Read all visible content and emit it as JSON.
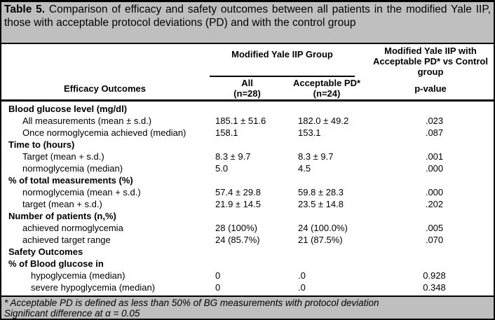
{
  "caption": {
    "label": "Table 5.",
    "text": "Comparison of efficacy and safety outcomes between all patients in the modified Yale IIP, those with acceptable protocol deviations (PD) and with the control group"
  },
  "header": {
    "group": "Modified Yale IIP Group",
    "comparison": "Modified Yale IIP with Acceptable PD* vs Control group",
    "row_label": "Efficacy Outcomes",
    "col_all": "All\n(n=28)",
    "col_pd": "Acceptable PD*\n(n=24)",
    "col_p": "p-value"
  },
  "rows": [
    {
      "type": "section",
      "label": "Blood glucose level (mg/dl)",
      "v1": "",
      "v2": "",
      "p": ""
    },
    {
      "type": "data",
      "label": "All measurements (mean ± s.d.)",
      "v1": "185.1 ± 51.6",
      "v2": "182.0 ± 49.2",
      "p": ".023"
    },
    {
      "type": "data",
      "label": "Once normoglycemia achieved (median)",
      "v1": "158.1",
      "v2": "153.1",
      "p": ".087"
    },
    {
      "type": "section",
      "label": "Time to (hours)",
      "v1": "",
      "v2": "",
      "p": ""
    },
    {
      "type": "data",
      "label": "Target (mean + s.d.)",
      "v1": "8.3 ± 9.7",
      "v2": "8.3 ± 9.7",
      "p": ".001"
    },
    {
      "type": "data",
      "label": "normoglycemia  (median)",
      "v1": "5.0",
      "v2": "4.5",
      "p": ".000"
    },
    {
      "type": "section",
      "label": "% of total measurements (%)",
      "v1": "",
      "v2": "",
      "p": ""
    },
    {
      "type": "data",
      "label": "normoglycemia (mean + s.d.)",
      "v1": "57.4 ± 29.8",
      "v2": "59.8 ± 28.3",
      "p": ".000"
    },
    {
      "type": "data",
      "label": "target  (mean + s.d.)",
      "v1": "21.9 ± 14.5",
      "v2": "23.5 ± 14.8",
      "p": ".202"
    },
    {
      "type": "section",
      "label": "Number of patients (n,%)",
      "v1": "",
      "v2": "",
      "p": ""
    },
    {
      "type": "data",
      "label": "achieved normoglycemia",
      "v1": "28 (100%)",
      "v2": "24 (100.0%)",
      "p": ".005"
    },
    {
      "type": "data",
      "label": "achieved target range",
      "v1": "24 (85.7%)",
      "v2": "21 (87.5%)",
      "p": ".070"
    },
    {
      "type": "section",
      "label": "Safety Outcomes",
      "v1": "",
      "v2": "",
      "p": ""
    },
    {
      "type": "section",
      "label": "% of Blood glucose in",
      "v1": "",
      "v2": "",
      "p": ""
    },
    {
      "type": "data",
      "indent": 2,
      "label": "hypoglycemia (median)",
      "v1": "0",
      "v2": ".0",
      "p": "0.928"
    },
    {
      "type": "data",
      "indent": 2,
      "label": "severe hypoglycemia (median)",
      "v1": "0",
      "v2": ".0",
      "p": "0.348"
    }
  ],
  "footnotes": [
    "* Acceptable PD is defined as less than 50% of BG measurements with protocol deviation",
    "Significant difference at α = 0.05"
  ],
  "colors": {
    "caption_bg": "#bfbfbf",
    "footer_bg": "#bfbfbf",
    "border": "#000000",
    "body_bg": "#ffffff",
    "text": "#000000"
  }
}
